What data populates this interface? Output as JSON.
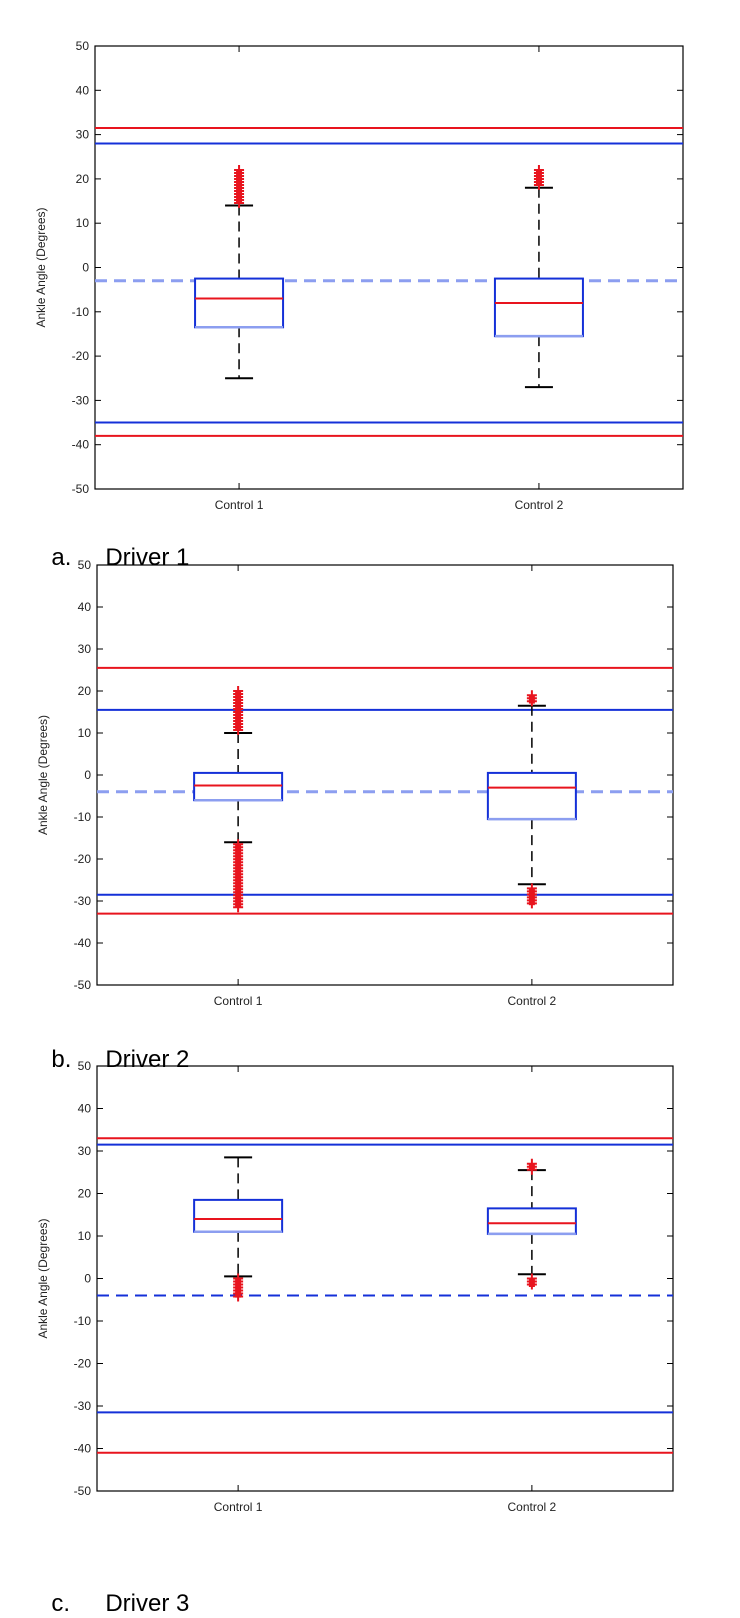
{
  "colors": {
    "red": "#e8141e",
    "blue": "#1430d8",
    "light_blue": "#8c9ef0",
    "pink": "#f08c96",
    "black": "#000000"
  },
  "chart_data": [
    {
      "type": "boxplot",
      "caption_letter": "a.",
      "caption_text": "Driver 1",
      "ylabel": "Ankle Angle (Degrees)",
      "xlabel": "",
      "ylim": [
        -50,
        50
      ],
      "yticks": [
        50,
        40,
        30,
        20,
        10,
        0,
        -10,
        -20,
        -30,
        -40,
        -50
      ],
      "categories": [
        "Control 1",
        "Control 2"
      ],
      "reference_lines": {
        "red_upper": 31.5,
        "blue_upper": 28,
        "dashed_mean": -3,
        "blue_lower": -35,
        "red_lower": -38
      },
      "boxes": [
        {
          "category": "Control 1",
          "whisker_high": 14,
          "q3": -2.5,
          "median": -7,
          "q1": -13.5,
          "whisker_low": -25,
          "outliers_high": [
            14.5,
            22
          ],
          "outliers_low": null
        },
        {
          "category": "Control 2",
          "whisker_high": 18,
          "q3": -2.5,
          "median": -8,
          "q1": -15.5,
          "whisker_low": -27,
          "outliers_high": [
            18.5,
            22
          ],
          "outliers_low": null
        }
      ]
    },
    {
      "type": "boxplot",
      "caption_letter": "b.",
      "caption_text": "Driver 2",
      "ylabel": "Ankle Angle (Degrees)",
      "xlabel": "",
      "ylim": [
        -50,
        50
      ],
      "yticks": [
        50,
        40,
        30,
        20,
        10,
        0,
        -10,
        -20,
        -30,
        -40,
        -50
      ],
      "categories": [
        "Control 1",
        "Control 2"
      ],
      "reference_lines": {
        "red_upper": 25.5,
        "blue_upper": 15.5,
        "dashed_mean": -4,
        "blue_lower": -28.5,
        "red_lower": -33
      },
      "boxes": [
        {
          "category": "Control 1",
          "whisker_high": 10,
          "q3": 0.5,
          "median": -2.5,
          "q1": -6,
          "whisker_low": -16,
          "outliers_high": [
            10.5,
            20
          ],
          "outliers_low": [
            -16.5,
            -31.5
          ]
        },
        {
          "category": "Control 2",
          "whisker_high": 16.5,
          "q3": 0.5,
          "median": -3,
          "q1": -10.5,
          "whisker_low": -26,
          "outliers_high": [
            17,
            19
          ],
          "outliers_low": [
            -27,
            -31
          ]
        }
      ]
    },
    {
      "type": "boxplot",
      "caption_letter": "c.",
      "caption_text": "Driver 3",
      "ylabel": "Ankle Angle (Degrees)",
      "xlabel": "",
      "ylim": [
        -50,
        50
      ],
      "yticks": [
        50,
        40,
        30,
        20,
        10,
        0,
        -10,
        -20,
        -30,
        -40,
        -50
      ],
      "categories": [
        "Control 1",
        "Control 2"
      ],
      "reference_lines": {
        "red_upper": 33,
        "blue_upper": 31.5,
        "dashed_mean": -4,
        "blue_lower": -31.5,
        "red_lower": -41
      },
      "boxes": [
        {
          "category": "Control 1",
          "whisker_high": 28.5,
          "q3": 18.5,
          "median": 14,
          "q1": 11,
          "whisker_low": 0.5,
          "outliers_high": null,
          "outliers_low": [
            0,
            -4.5
          ]
        },
        {
          "category": "Control 2",
          "whisker_high": 25.5,
          "q3": 16.5,
          "median": 13,
          "q1": 10.5,
          "whisker_low": 1,
          "outliers_high": [
            25.5,
            27
          ],
          "outliers_low": [
            0,
            -2
          ]
        }
      ]
    }
  ]
}
